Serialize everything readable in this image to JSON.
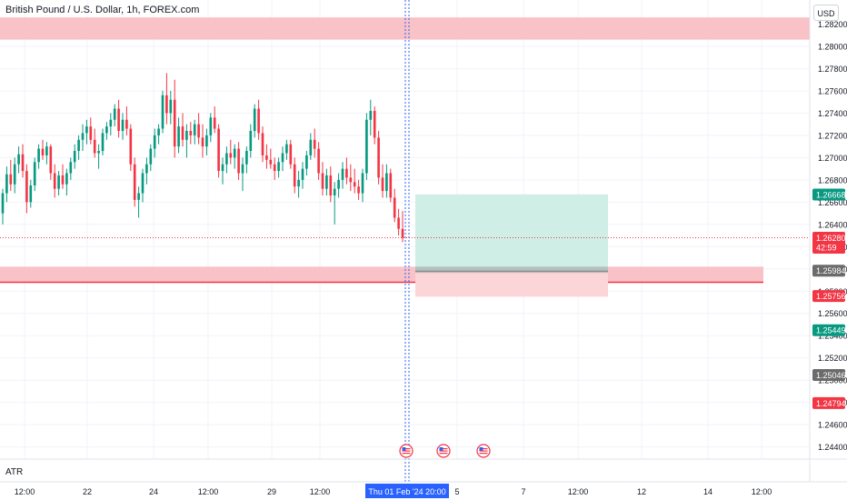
{
  "title": "British Pound / U.S. Dollar, 1h, FOREX.com",
  "currency_label": "USD",
  "indicator_label": "ATR",
  "cursor_time_label": "Thu 01 Feb '24   20:00",
  "colors": {
    "bull": "#089981",
    "bear": "#f23645",
    "zone_fill": "#f8b7bd",
    "zone_line": "#f23645",
    "target_fill": "#cfeee5",
    "stop_fill": "#fbd5d8",
    "cursor_line": "#2962ff",
    "grid": "#f0f3fa"
  },
  "chart_data": {
    "type": "candlestick",
    "title": "British Pound / U.S. Dollar, 1h, FOREX.com",
    "y_range": [
      1.2425,
      1.284
    ],
    "y_ticks": [
      "1.28200",
      "1.28000",
      "1.27800",
      "1.27600",
      "1.27400",
      "1.27200",
      "1.27000",
      "1.26800",
      "1.26600",
      "1.26400",
      "1.26200",
      "1.26000",
      "1.25800",
      "1.25600",
      "1.25400",
      "1.25200",
      "1.25000",
      "1.24800",
      "1.24600",
      "1.24400"
    ],
    "x_tick_labels": [
      "12:00",
      "22",
      "24",
      "12:00",
      "29",
      "12:00",
      "5",
      "7",
      "12:00",
      "12",
      "14",
      "12:00"
    ],
    "price_labels": [
      {
        "text": "1.26668",
        "value": 1.26668,
        "color": "#089981"
      },
      {
        "text": "1.26280",
        "value": 1.2628,
        "color": "#f23645",
        "sub": "42:59"
      },
      {
        "text": "1.25984",
        "value": 1.25984,
        "color": "#6b6b6b"
      },
      {
        "text": "1.25756",
        "value": 1.25756,
        "color": "#f23645"
      },
      {
        "text": "1.25449",
        "value": 1.25449,
        "color": "#089981"
      },
      {
        "text": "1.25046",
        "value": 1.25046,
        "color": "#6b6b6b"
      },
      {
        "text": "1.24794",
        "value": 1.24794,
        "color": "#f23645"
      }
    ],
    "current_price": 1.2628,
    "zones": [
      {
        "top": 1.2826,
        "bottom": 1.2806
      },
      {
        "top": 1.2602,
        "bottom": 1.2588,
        "line": 1.2588
      }
    ],
    "position": {
      "entry": 1.2598,
      "target": 1.2667,
      "stop": 1.2575
    },
    "candles": [
      [
        1.265,
        1.2672,
        1.264,
        1.2668
      ],
      [
        1.2668,
        1.2692,
        1.266,
        1.2685
      ],
      [
        1.2685,
        1.2698,
        1.267,
        1.2676
      ],
      [
        1.2676,
        1.27,
        1.2668,
        1.2694
      ],
      [
        1.2694,
        1.271,
        1.2686,
        1.2703
      ],
      [
        1.2703,
        1.2712,
        1.2682,
        1.2688
      ],
      [
        1.2688,
        1.2694,
        1.265,
        1.266
      ],
      [
        1.266,
        1.268,
        1.2655,
        1.2675
      ],
      [
        1.2675,
        1.27,
        1.267,
        1.2696
      ],
      [
        1.2696,
        1.2712,
        1.269,
        1.2708
      ],
      [
        1.2708,
        1.2716,
        1.2698,
        1.2702
      ],
      [
        1.2702,
        1.2714,
        1.2694,
        1.271
      ],
      [
        1.271,
        1.2712,
        1.268,
        1.2686
      ],
      [
        1.2686,
        1.2694,
        1.2664,
        1.2672
      ],
      [
        1.2672,
        1.2688,
        1.2666,
        1.2684
      ],
      [
        1.2684,
        1.2694,
        1.2672,
        1.2676
      ],
      [
        1.2676,
        1.269,
        1.2666,
        1.2686
      ],
      [
        1.2686,
        1.27,
        1.268,
        1.2696
      ],
      [
        1.2696,
        1.2712,
        1.269,
        1.2706
      ],
      [
        1.2706,
        1.272,
        1.2698,
        1.2716
      ],
      [
        1.2716,
        1.273,
        1.2706,
        1.2722
      ],
      [
        1.2722,
        1.2734,
        1.2712,
        1.2728
      ],
      [
        1.2728,
        1.2736,
        1.2712,
        1.2716
      ],
      [
        1.2716,
        1.2726,
        1.27,
        1.2704
      ],
      [
        1.2704,
        1.2712,
        1.269,
        1.2706
      ],
      [
        1.2706,
        1.2726,
        1.2702,
        1.2722
      ],
      [
        1.2722,
        1.2732,
        1.2716,
        1.2728
      ],
      [
        1.2728,
        1.274,
        1.272,
        1.2734
      ],
      [
        1.2734,
        1.2748,
        1.2728,
        1.2744
      ],
      [
        1.2744,
        1.2752,
        1.2718,
        1.2724
      ],
      [
        1.2724,
        1.274,
        1.2716,
        1.2734
      ],
      [
        1.2734,
        1.2746,
        1.272,
        1.2726
      ],
      [
        1.2726,
        1.273,
        1.2688,
        1.2694
      ],
      [
        1.2694,
        1.27,
        1.2656,
        1.2662
      ],
      [
        1.2662,
        1.2674,
        1.2646,
        1.2668
      ],
      [
        1.2668,
        1.269,
        1.266,
        1.2686
      ],
      [
        1.2686,
        1.27,
        1.2676,
        1.2694
      ],
      [
        1.2694,
        1.2712,
        1.2688,
        1.2708
      ],
      [
        1.2708,
        1.2726,
        1.27,
        1.272
      ],
      [
        1.272,
        1.273,
        1.2712,
        1.2726
      ],
      [
        1.2726,
        1.276,
        1.2722,
        1.2756
      ],
      [
        1.2756,
        1.2776,
        1.273,
        1.274
      ],
      [
        1.274,
        1.276,
        1.273,
        1.2752
      ],
      [
        1.2752,
        1.277,
        1.27,
        1.271
      ],
      [
        1.271,
        1.2736,
        1.2704,
        1.2728
      ],
      [
        1.2728,
        1.274,
        1.271,
        1.2716
      ],
      [
        1.2716,
        1.273,
        1.27,
        1.2724
      ],
      [
        1.2724,
        1.2732,
        1.2712,
        1.272
      ],
      [
        1.272,
        1.2734,
        1.2712,
        1.273
      ],
      [
        1.273,
        1.274,
        1.2712,
        1.2718
      ],
      [
        1.2718,
        1.273,
        1.27,
        1.271
      ],
      [
        1.271,
        1.2726,
        1.2702,
        1.272
      ],
      [
        1.272,
        1.274,
        1.2714,
        1.2736
      ],
      [
        1.2736,
        1.2746,
        1.2722,
        1.2726
      ],
      [
        1.2726,
        1.273,
        1.2682,
        1.2688
      ],
      [
        1.2688,
        1.27,
        1.2676,
        1.2694
      ],
      [
        1.2694,
        1.271,
        1.2686,
        1.2704
      ],
      [
        1.2704,
        1.2716,
        1.2694,
        1.27
      ],
      [
        1.27,
        1.2712,
        1.269,
        1.2708
      ],
      [
        1.2708,
        1.2714,
        1.268,
        1.2686
      ],
      [
        1.2686,
        1.27,
        1.267,
        1.2694
      ],
      [
        1.2694,
        1.271,
        1.2686,
        1.2706
      ],
      [
        1.2706,
        1.273,
        1.27,
        1.2724
      ],
      [
        1.2724,
        1.2748,
        1.2718,
        1.2744
      ],
      [
        1.2744,
        1.2752,
        1.2716,
        1.2722
      ],
      [
        1.2722,
        1.2728,
        1.2696,
        1.2702
      ],
      [
        1.2702,
        1.2712,
        1.269,
        1.2698
      ],
      [
        1.2698,
        1.2708,
        1.269,
        1.2694
      ],
      [
        1.2694,
        1.27,
        1.268,
        1.2688
      ],
      [
        1.2688,
        1.27,
        1.2682,
        1.2696
      ],
      [
        1.2696,
        1.271,
        1.2688,
        1.2704
      ],
      [
        1.2704,
        1.2716,
        1.2698,
        1.2712
      ],
      [
        1.2712,
        1.2716,
        1.269,
        1.2694
      ],
      [
        1.2694,
        1.27,
        1.2668,
        1.2674
      ],
      [
        1.2674,
        1.2688,
        1.2664,
        1.268
      ],
      [
        1.268,
        1.2696,
        1.2672,
        1.269
      ],
      [
        1.269,
        1.2706,
        1.2684,
        1.2702
      ],
      [
        1.2702,
        1.2722,
        1.2698,
        1.2716
      ],
      [
        1.2716,
        1.2726,
        1.27,
        1.2708
      ],
      [
        1.2708,
        1.2714,
        1.268,
        1.2686
      ],
      [
        1.2686,
        1.2696,
        1.2666,
        1.2672
      ],
      [
        1.2672,
        1.269,
        1.2666,
        1.2684
      ],
      [
        1.2684,
        1.2692,
        1.266,
        1.2666
      ],
      [
        1.2666,
        1.2678,
        1.264,
        1.2672
      ],
      [
        1.2672,
        1.2686,
        1.2664,
        1.268
      ],
      [
        1.268,
        1.2696,
        1.2672,
        1.269
      ],
      [
        1.269,
        1.27,
        1.2676,
        1.2682
      ],
      [
        1.2682,
        1.2694,
        1.267,
        1.2678
      ],
      [
        1.2678,
        1.269,
        1.2668,
        1.2674
      ],
      [
        1.2674,
        1.268,
        1.2662,
        1.2668
      ],
      [
        1.2668,
        1.269,
        1.266,
        1.2686
      ],
      [
        1.2686,
        1.274,
        1.268,
        1.2734
      ],
      [
        1.2734,
        1.2752,
        1.272,
        1.2742
      ],
      [
        1.2742,
        1.2746,
        1.2712,
        1.2718
      ],
      [
        1.2718,
        1.2724,
        1.2676,
        1.2682
      ],
      [
        1.2682,
        1.2694,
        1.2664,
        1.267
      ],
      [
        1.267,
        1.2694,
        1.2664,
        1.2686
      ],
      [
        1.2686,
        1.269,
        1.266,
        1.2664
      ],
      [
        1.2664,
        1.2672,
        1.2642,
        1.2646
      ],
      [
        1.2646,
        1.2654,
        1.263,
        1.2636
      ],
      [
        1.2636,
        1.2652,
        1.2624,
        1.2628
      ]
    ]
  },
  "event_icons": [
    {
      "name": "us-flag-event-icon-1",
      "label": "US"
    },
    {
      "name": "us-flag-event-icon-2",
      "label": "US"
    },
    {
      "name": "us-flag-event-icon-3",
      "label": "US"
    }
  ]
}
